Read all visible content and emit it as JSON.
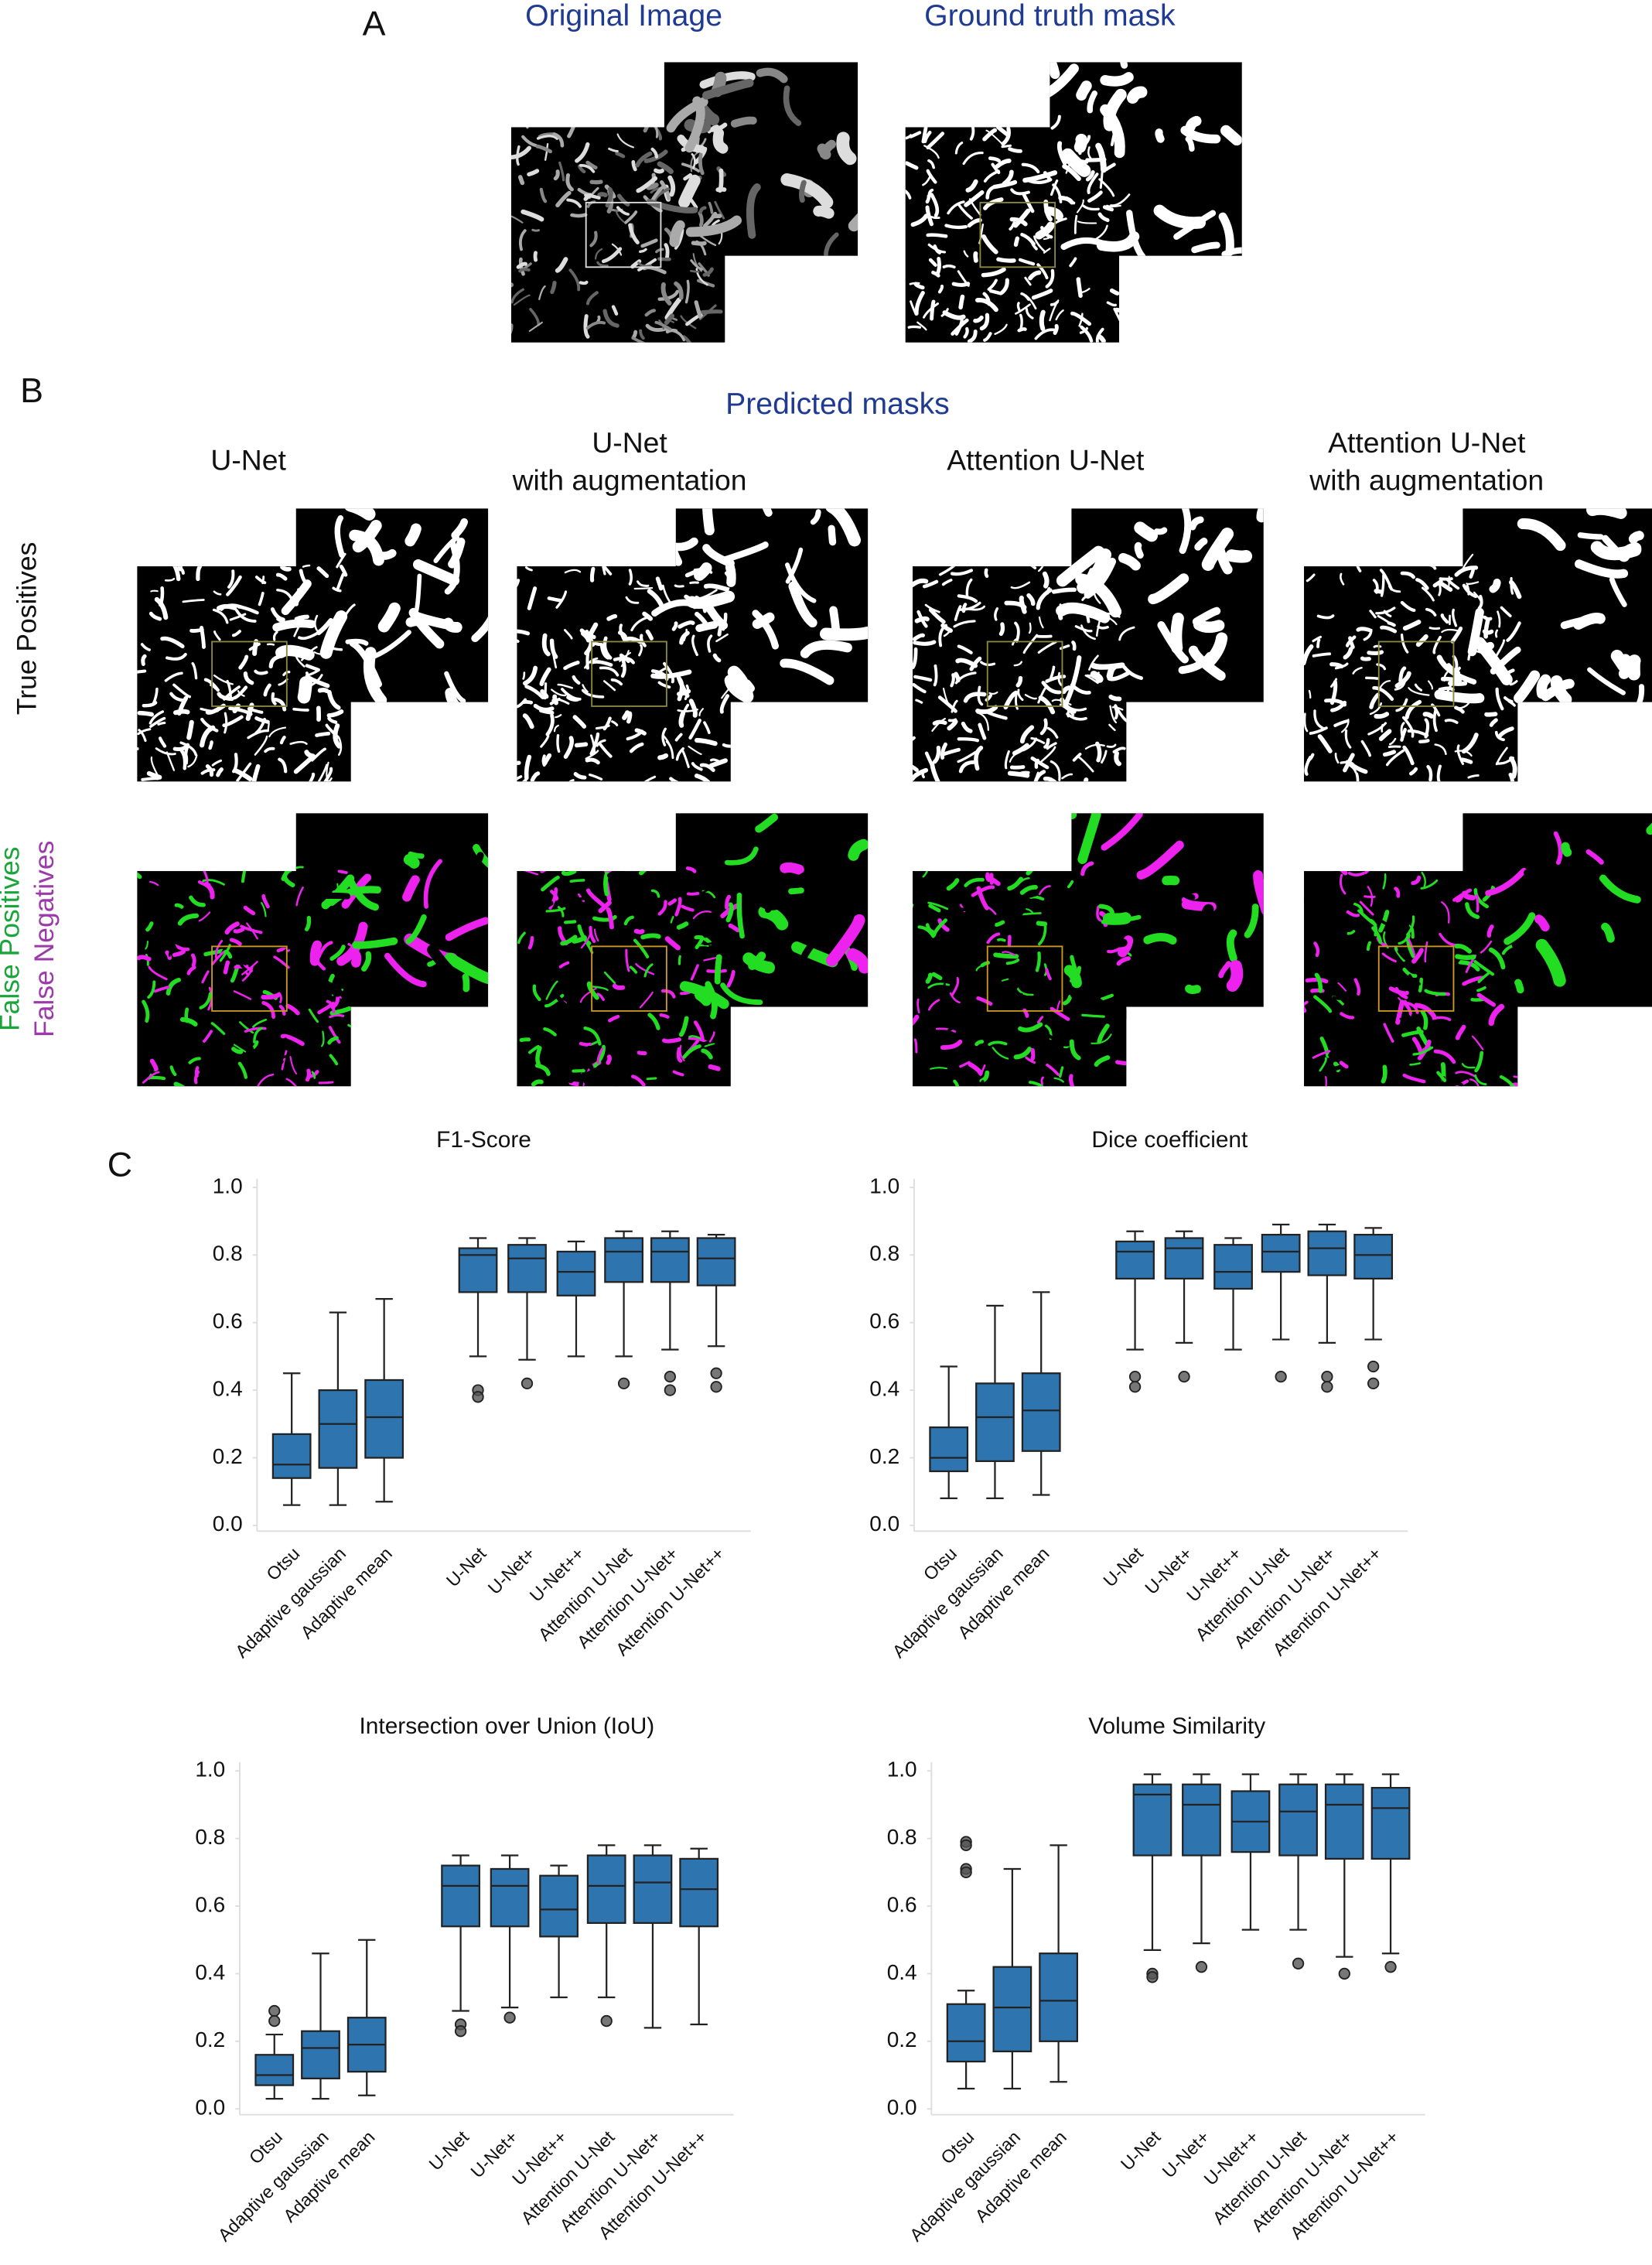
{
  "panel_a": {
    "label": "A",
    "titles": [
      "Original Image",
      "Ground truth mask"
    ]
  },
  "panel_b": {
    "label": "B",
    "title": "Predicted masks",
    "columns": [
      [
        "U-Net"
      ],
      [
        "U-Net",
        "with augmentation"
      ],
      [
        "Attention U-Net"
      ],
      [
        "Attention U-Net",
        "with augmentation"
      ]
    ],
    "rows": {
      "true_positives": "True Positives",
      "false_positives": "False Positives",
      "false_negatives": "False Negatives"
    }
  },
  "panel_c": {
    "label": "C"
  },
  "chart_data": [
    {
      "type": "box",
      "title": "F1-Score",
      "color": "#2e75b0",
      "categories": [
        "Otsu",
        "Adaptive gaussian",
        "Adaptive mean",
        "U-Net",
        "U-Net+",
        "U-Net++",
        "Attention U-Net",
        "Attention U-Net+",
        "Attention U-Net++"
      ],
      "ylim": [
        0,
        1
      ],
      "yticks": [
        {
          "value": 0,
          "label": "0.0"
        },
        {
          "value": 0.2,
          "label": "0.2"
        },
        {
          "value": 0.4,
          "label": "0.4"
        },
        {
          "value": 0.6,
          "label": "0.6"
        },
        {
          "value": 0.8,
          "label": "0.8"
        },
        {
          "value": 1,
          "label": "1.0"
        }
      ],
      "boxes": [
        {
          "whisker_low": 0.06,
          "q1": 0.14,
          "median": 0.18,
          "q3": 0.27,
          "whisker_high": 0.45,
          "outliers": []
        },
        {
          "whisker_low": 0.06,
          "q1": 0.17,
          "median": 0.3,
          "q3": 0.4,
          "whisker_high": 0.63,
          "outliers": []
        },
        {
          "whisker_low": 0.07,
          "q1": 0.2,
          "median": 0.32,
          "q3": 0.43,
          "whisker_high": 0.67,
          "outliers": []
        },
        {
          "whisker_low": 0.5,
          "q1": 0.69,
          "median": 0.8,
          "q3": 0.82,
          "whisker_high": 0.85,
          "outliers": [
            0.4,
            0.38
          ]
        },
        {
          "whisker_low": 0.49,
          "q1": 0.69,
          "median": 0.79,
          "q3": 0.83,
          "whisker_high": 0.85,
          "outliers": [
            0.42
          ]
        },
        {
          "whisker_low": 0.5,
          "q1": 0.68,
          "median": 0.75,
          "q3": 0.81,
          "whisker_high": 0.84,
          "outliers": []
        },
        {
          "whisker_low": 0.5,
          "q1": 0.72,
          "median": 0.81,
          "q3": 0.85,
          "whisker_high": 0.87,
          "outliers": [
            0.42
          ]
        },
        {
          "whisker_low": 0.52,
          "q1": 0.72,
          "median": 0.81,
          "q3": 0.85,
          "whisker_high": 0.87,
          "outliers": [
            0.44,
            0.4
          ]
        },
        {
          "whisker_low": 0.53,
          "q1": 0.71,
          "median": 0.79,
          "q3": 0.85,
          "whisker_high": 0.86,
          "outliers": [
            0.45,
            0.41
          ]
        }
      ]
    },
    {
      "type": "box",
      "title": "Dice coefficient",
      "color": "#2e75b0",
      "categories": [
        "Otsu",
        "Adaptive gaussian",
        "Adaptive mean",
        "U-Net",
        "U-Net+",
        "U-Net++",
        "Attention U-Net",
        "Attention U-Net+",
        "Attention U-Net++"
      ],
      "ylim": [
        0,
        1
      ],
      "yticks": [
        {
          "value": 0,
          "label": "0.0"
        },
        {
          "value": 0.2,
          "label": "0.2"
        },
        {
          "value": 0.4,
          "label": "0.4"
        },
        {
          "value": 0.6,
          "label": "0.6"
        },
        {
          "value": 0.8,
          "label": "0.8"
        },
        {
          "value": 1,
          "label": "1.0"
        }
      ],
      "boxes": [
        {
          "whisker_low": 0.08,
          "q1": 0.16,
          "median": 0.2,
          "q3": 0.29,
          "whisker_high": 0.47,
          "outliers": []
        },
        {
          "whisker_low": 0.08,
          "q1": 0.19,
          "median": 0.32,
          "q3": 0.42,
          "whisker_high": 0.65,
          "outliers": []
        },
        {
          "whisker_low": 0.09,
          "q1": 0.22,
          "median": 0.34,
          "q3": 0.45,
          "whisker_high": 0.69,
          "outliers": []
        },
        {
          "whisker_low": 0.52,
          "q1": 0.73,
          "median": 0.81,
          "q3": 0.84,
          "whisker_high": 0.87,
          "outliers": [
            0.44,
            0.41
          ]
        },
        {
          "whisker_low": 0.54,
          "q1": 0.73,
          "median": 0.82,
          "q3": 0.85,
          "whisker_high": 0.87,
          "outliers": [
            0.44
          ]
        },
        {
          "whisker_low": 0.52,
          "q1": 0.7,
          "median": 0.75,
          "q3": 0.83,
          "whisker_high": 0.85,
          "outliers": []
        },
        {
          "whisker_low": 0.55,
          "q1": 0.75,
          "median": 0.81,
          "q3": 0.86,
          "whisker_high": 0.89,
          "outliers": [
            0.44
          ]
        },
        {
          "whisker_low": 0.54,
          "q1": 0.74,
          "median": 0.82,
          "q3": 0.87,
          "whisker_high": 0.89,
          "outliers": [
            0.44,
            0.41
          ]
        },
        {
          "whisker_low": 0.55,
          "q1": 0.73,
          "median": 0.8,
          "q3": 0.86,
          "whisker_high": 0.88,
          "outliers": [
            0.47,
            0.42
          ]
        }
      ]
    },
    {
      "type": "box",
      "title": "Intersection over Union (IoU)",
      "color": "#2e75b0",
      "categories": [
        "Otsu",
        "Adaptive gaussian",
        "Adaptive mean",
        "U-Net",
        "U-Net+",
        "U-Net++",
        "Attention U-Net",
        "Attention U-Net+",
        "Attention U-Net++"
      ],
      "ylim": [
        0,
        1
      ],
      "yticks": [
        {
          "value": 0,
          "label": "0.0"
        },
        {
          "value": 0.2,
          "label": "0.2"
        },
        {
          "value": 0.4,
          "label": "0.4"
        },
        {
          "value": 0.6,
          "label": "0.6"
        },
        {
          "value": 0.8,
          "label": "0.8"
        },
        {
          "value": 1,
          "label": "1.0"
        }
      ],
      "boxes": [
        {
          "whisker_low": 0.03,
          "q1": 0.07,
          "median": 0.1,
          "q3": 0.16,
          "whisker_high": 0.22,
          "outliers": [
            0.29,
            0.26
          ]
        },
        {
          "whisker_low": 0.03,
          "q1": 0.09,
          "median": 0.18,
          "q3": 0.23,
          "whisker_high": 0.46,
          "outliers": []
        },
        {
          "whisker_low": 0.04,
          "q1": 0.11,
          "median": 0.19,
          "q3": 0.27,
          "whisker_high": 0.5,
          "outliers": []
        },
        {
          "whisker_low": 0.29,
          "q1": 0.54,
          "median": 0.66,
          "q3": 0.72,
          "whisker_high": 0.75,
          "outliers": [
            0.25,
            0.23
          ]
        },
        {
          "whisker_low": 0.3,
          "q1": 0.54,
          "median": 0.66,
          "q3": 0.71,
          "whisker_high": 0.75,
          "outliers": [
            0.27
          ]
        },
        {
          "whisker_low": 0.33,
          "q1": 0.51,
          "median": 0.59,
          "q3": 0.69,
          "whisker_high": 0.72,
          "outliers": []
        },
        {
          "whisker_low": 0.33,
          "q1": 0.55,
          "median": 0.66,
          "q3": 0.75,
          "whisker_high": 0.78,
          "outliers": [
            0.26
          ]
        },
        {
          "whisker_low": 0.24,
          "q1": 0.55,
          "median": 0.67,
          "q3": 0.75,
          "whisker_high": 0.78,
          "outliers": []
        },
        {
          "whisker_low": 0.25,
          "q1": 0.54,
          "median": 0.65,
          "q3": 0.74,
          "whisker_high": 0.77,
          "outliers": []
        }
      ]
    },
    {
      "type": "box",
      "title": "Volume Similarity",
      "color": "#2e75b0",
      "categories": [
        "Otsu",
        "Adaptive gaussian",
        "Adaptive mean",
        "U-Net",
        "U-Net+",
        "U-Net++",
        "Attention U-Net",
        "Attention U-Net+",
        "Attention U-Net++"
      ],
      "ylim": [
        0,
        1
      ],
      "yticks": [
        {
          "value": 0,
          "label": "0.0"
        },
        {
          "value": 0.2,
          "label": "0.2"
        },
        {
          "value": 0.4,
          "label": "0.4"
        },
        {
          "value": 0.6,
          "label": "0.6"
        },
        {
          "value": 0.8,
          "label": "0.8"
        },
        {
          "value": 1,
          "label": "1.0"
        }
      ],
      "boxes": [
        {
          "whisker_low": 0.06,
          "q1": 0.14,
          "median": 0.2,
          "q3": 0.31,
          "whisker_high": 0.35,
          "outliers": [
            0.79,
            0.78,
            0.71,
            0.7
          ]
        },
        {
          "whisker_low": 0.06,
          "q1": 0.17,
          "median": 0.3,
          "q3": 0.42,
          "whisker_high": 0.71,
          "outliers": []
        },
        {
          "whisker_low": 0.08,
          "q1": 0.2,
          "median": 0.32,
          "q3": 0.46,
          "whisker_high": 0.78,
          "outliers": []
        },
        {
          "whisker_low": 0.47,
          "q1": 0.75,
          "median": 0.93,
          "q3": 0.96,
          "whisker_high": 0.99,
          "outliers": [
            0.4,
            0.39
          ]
        },
        {
          "whisker_low": 0.49,
          "q1": 0.75,
          "median": 0.9,
          "q3": 0.96,
          "whisker_high": 0.99,
          "outliers": [
            0.42
          ]
        },
        {
          "whisker_low": 0.53,
          "q1": 0.76,
          "median": 0.85,
          "q3": 0.94,
          "whisker_high": 0.99,
          "outliers": []
        },
        {
          "whisker_low": 0.53,
          "q1": 0.75,
          "median": 0.88,
          "q3": 0.96,
          "whisker_high": 0.99,
          "outliers": [
            0.43
          ]
        },
        {
          "whisker_low": 0.45,
          "q1": 0.74,
          "median": 0.9,
          "q3": 0.96,
          "whisker_high": 0.99,
          "outliers": [
            0.4
          ]
        },
        {
          "whisker_low": 0.46,
          "q1": 0.74,
          "median": 0.89,
          "q3": 0.95,
          "whisker_high": 0.99,
          "outliers": [
            0.42
          ]
        }
      ]
    }
  ]
}
